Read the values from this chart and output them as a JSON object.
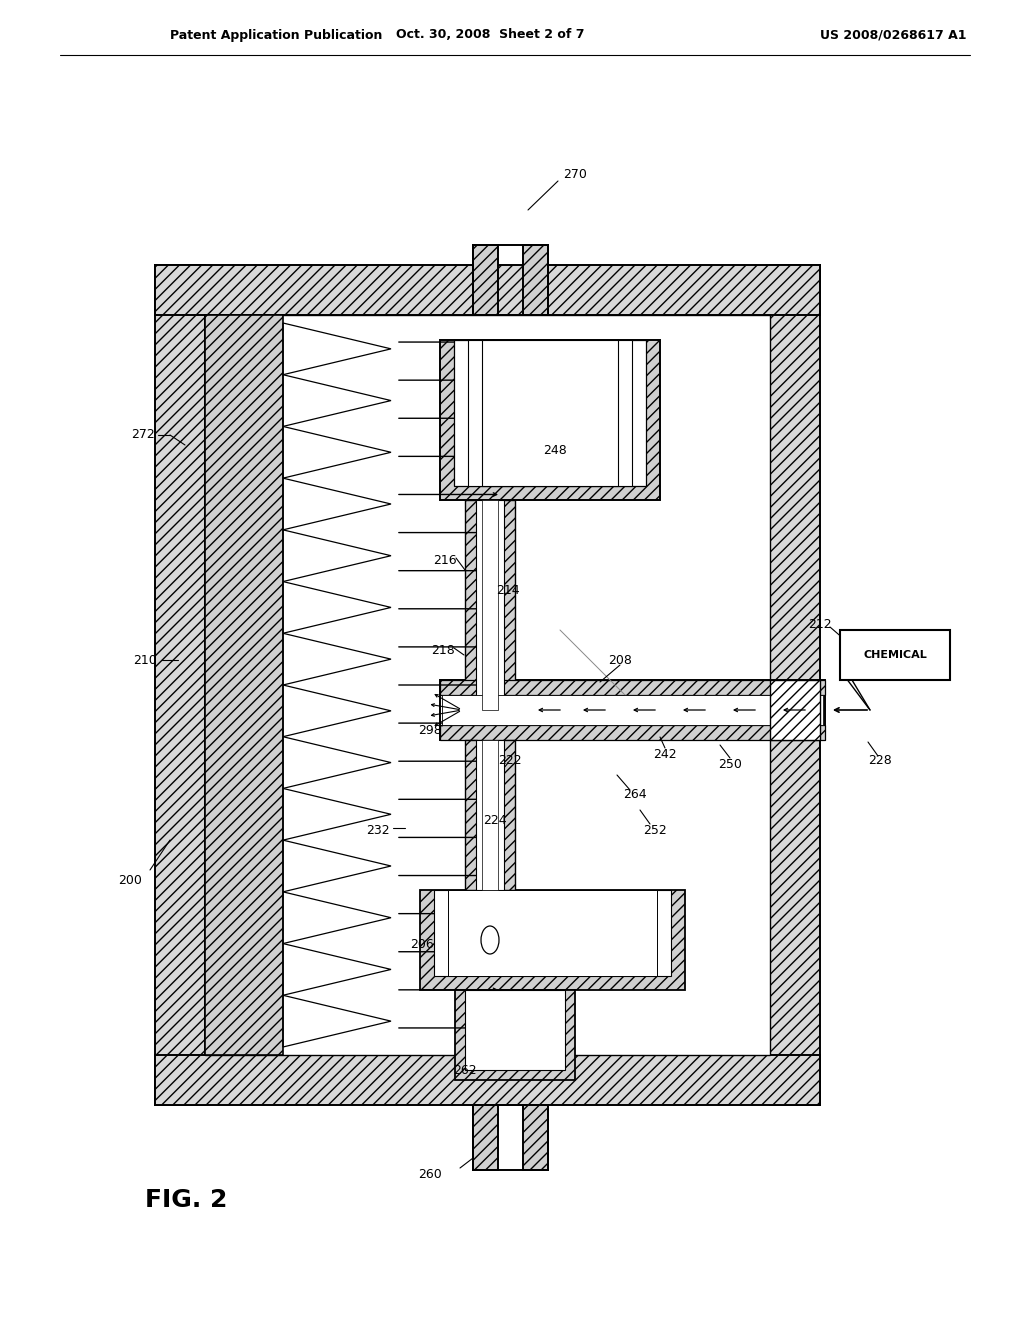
{
  "bg_color": "#ffffff",
  "header_left": "Patent Application Publication",
  "header_center": "Oct. 30, 2008  Sheet 2 of 7",
  "header_right": "US 2008/0268617 A1",
  "fig_label": "FIG. 2",
  "label_fs": 9,
  "header_fs": 9
}
